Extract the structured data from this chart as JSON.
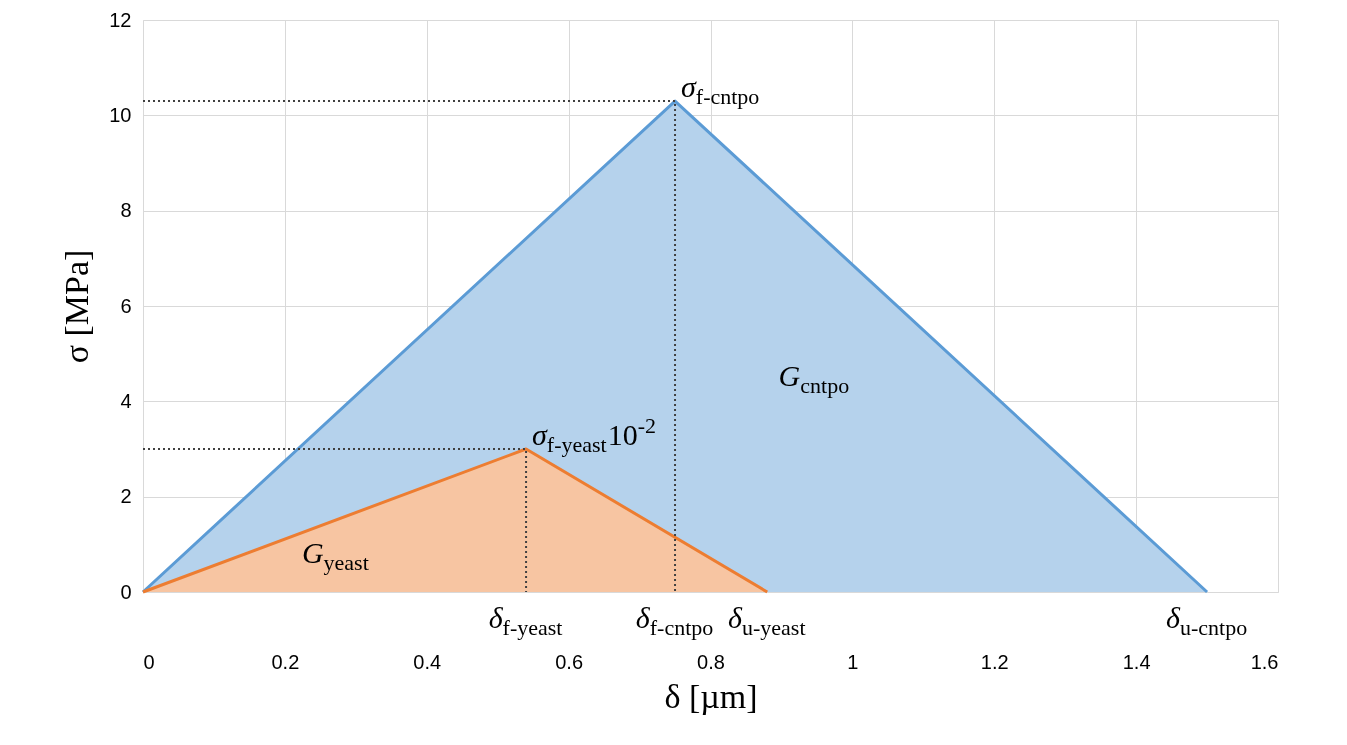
{
  "chart_data": {
    "type": "area",
    "xlabel": "δ  [µm]",
    "ylabel": "σ  [MPa]",
    "xlim": [
      0,
      1.6
    ],
    "xticks": [
      0,
      0.2,
      0.4,
      0.6,
      0.8,
      1,
      1.2,
      1.4,
      1.6
    ],
    "ylim": [
      0,
      12
    ],
    "yticks": [
      0,
      2,
      4,
      6,
      8,
      10,
      12
    ],
    "grid": true,
    "series": [
      {
        "color": "#5b9bd5",
        "x": [
          0,
          0.75,
          1.5
        ],
        "values": [
          0,
          10.3,
          0
        ]
      },
      {
        "color": "#ed7d31",
        "x": [
          0,
          0.54,
          0.88
        ],
        "values": [
          0,
          3,
          0
        ]
      },
      {
        "type": "line",
        "color": "#404040",
        "line_style": "dotted",
        "x": [
          0,
          0.75,
          0.75
        ],
        "values": [
          10.3,
          10.3,
          0
        ]
      },
      {
        "type": "line",
        "color": "#404040",
        "line_style": "dotted",
        "x": [
          0,
          0.54,
          0.54
        ],
        "values": [
          3,
          3,
          0
        ]
      }
    ],
    "annotations": [
      {
        "text": "σ$_{f-cntpo}$",
        "x": 0.75,
        "y": 10.3
      },
      {
        "text": "σ$_{f-yeast}$10$^{-2}$",
        "x": 0.54,
        "y": 3
      },
      "G$_{cntpo}$",
      "G$_{yeast}$",
      {
        "text": "δ$_{f-yeast}$",
        "x": 0.54,
        "y": 0
      },
      {
        "text": "δ$_{f-cntpo}$",
        "x": 0.75,
        "y": 0
      },
      {
        "text": "δ$_{u-yeast}$",
        "x": 0.88,
        "y": 0
      },
      {
        "text": "δ$_{u-cntpo}$",
        "x": 1.5,
        "y": 0
      }
    ]
  }
}
